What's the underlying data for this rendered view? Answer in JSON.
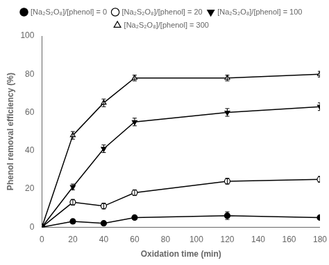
{
  "chart_data": {
    "type": "line",
    "x": [
      0,
      20,
      40,
      60,
      120,
      180
    ],
    "series": [
      {
        "name": "[Na₂S₂O₈]/[phenol] = 0",
        "color": "black",
        "marker": "circle",
        "values": [
          0,
          3,
          2,
          5,
          6,
          5
        ],
        "errors": [
          0,
          1.0,
          0.8,
          0.8,
          2.0,
          0.8
        ]
      },
      {
        "name": "[Na₂S₂O₈]/[phenol] = 20",
        "color": "black",
        "marker": "circle-open",
        "values": [
          0,
          13,
          11,
          18,
          24,
          25
        ],
        "errors": [
          0,
          1.5,
          1.5,
          1.5,
          1.5,
          1.5
        ]
      },
      {
        "name": "[Na₂S₂O₈]/[phenol] = 100",
        "color": "black",
        "marker": "triangle-down",
        "values": [
          0,
          21,
          41,
          55,
          60,
          63
        ],
        "errors": [
          0,
          1.5,
          2.0,
          2.0,
          2.0,
          2.0
        ]
      },
      {
        "name": "[Na₂S₂O₈]/[phenol] = 300",
        "color": "black",
        "marker": "triangle-open",
        "values": [
          0,
          48,
          65,
          78,
          78,
          80
        ],
        "errors": [
          0,
          2.0,
          2.0,
          1.5,
          1.5,
          1.5
        ]
      }
    ],
    "x_label": "Oxidation time (min)",
    "y_label": "Phenol removal efficiency (%)",
    "xlim": [
      0,
      180
    ],
    "ylim": [
      0,
      100
    ],
    "xticks": [
      0,
      20,
      40,
      60,
      80,
      100,
      120,
      140,
      160,
      180
    ],
    "yticks": [
      0,
      20,
      40,
      60,
      80,
      100
    ],
    "grid": false,
    "legend": "top"
  }
}
